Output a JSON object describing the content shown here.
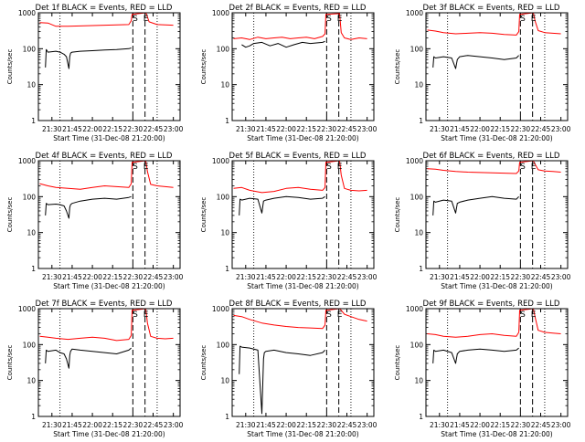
{
  "figure": {
    "x_ticks": [
      "21:30",
      "21:45",
      "22:00",
      "22:15",
      "22:30",
      "22:45",
      "23:00"
    ],
    "x_tick_values": [
      21.5,
      21.75,
      22.0,
      22.25,
      22.5,
      22.75,
      23.0
    ],
    "y_ticks": [
      "1",
      "10",
      "100",
      "1000"
    ],
    "y_tick_values": [
      1,
      10,
      100,
      1000
    ],
    "xlabel": "Start Time (31-Dec-08 21:20:00)",
    "ylabel": "Counts/sec",
    "colors": {
      "black": "#000000",
      "red": "#ff0000",
      "background": "#ffffff"
    }
  },
  "chart_data": [
    {
      "panel": "Det 1f",
      "type": "line",
      "title": "Det 1f BLACK = Events, RED = LLD",
      "xlabel": "Start Time (31-Dec-08 21:20:00)",
      "ylabel": "Counts/sec",
      "x_unit": "hours (clock time)",
      "xlim": [
        21.333,
        23.083
      ],
      "ylim": [
        1,
        1000
      ],
      "y_scale": "log",
      "dotted_lines": [
        21.6,
        22.8
      ],
      "dashed_lines": [
        22.5,
        22.65
      ],
      "markers": [
        {
          "label": "S",
          "x": 22.53
        },
        {
          "label": "E",
          "x": 22.66
        }
      ],
      "series": [
        {
          "name": "Events",
          "color": "black",
          "x": [
            21.42,
            21.43,
            21.45,
            21.55,
            21.6,
            21.65,
            21.68,
            21.71,
            21.72,
            21.73,
            21.75,
            21.85,
            22.0,
            22.15,
            22.3,
            22.45,
            22.48
          ],
          "y": [
            30,
            95,
            80,
            85,
            80,
            70,
            60,
            28,
            60,
            75,
            80,
            85,
            88,
            92,
            95,
            100,
            105
          ]
        },
        {
          "name": "LLD",
          "color": "red",
          "x": [
            21.35,
            21.45,
            21.55,
            21.7,
            21.85,
            22.0,
            22.15,
            22.3,
            22.45,
            22.48,
            22.49,
            22.66,
            22.67,
            22.7,
            22.8,
            22.9,
            23.0
          ],
          "y": [
            530,
            520,
            420,
            420,
            430,
            440,
            450,
            460,
            470,
            600,
            900,
            1000,
            900,
            560,
            470,
            460,
            450
          ]
        }
      ]
    },
    {
      "panel": "Det 2f",
      "type": "line",
      "title": "Det 2f BLACK = Events, RED = LLD",
      "xlabel": "Start Time (31-Dec-08 21:20:00)",
      "ylabel": "Counts/sec",
      "x_unit": "hours (clock time)",
      "xlim": [
        21.333,
        23.083
      ],
      "ylim": [
        1,
        1000
      ],
      "y_scale": "log",
      "dotted_lines": [
        21.6,
        22.8
      ],
      "dashed_lines": [
        22.5,
        22.65
      ],
      "markers": [
        {
          "label": "S",
          "x": 22.53
        },
        {
          "label": "E",
          "x": 22.66
        }
      ],
      "series": [
        {
          "name": "Events",
          "color": "black",
          "x": [
            21.45,
            21.5,
            21.55,
            21.6,
            21.7,
            21.8,
            21.9,
            22.0,
            22.1,
            22.2,
            22.3,
            22.45,
            22.48
          ],
          "y": [
            130,
            110,
            120,
            140,
            150,
            120,
            140,
            110,
            130,
            150,
            140,
            150,
            160
          ]
        },
        {
          "name": "LLD",
          "color": "red",
          "x": [
            21.35,
            21.45,
            21.55,
            21.65,
            21.75,
            21.85,
            21.95,
            22.05,
            22.15,
            22.25,
            22.35,
            22.45,
            22.48,
            22.49,
            22.66,
            22.68,
            22.72,
            22.8,
            22.9,
            23.0
          ],
          "y": [
            190,
            200,
            180,
            210,
            190,
            200,
            210,
            190,
            200,
            210,
            190,
            220,
            260,
            900,
            950,
            280,
            200,
            180,
            200,
            190
          ]
        }
      ]
    },
    {
      "panel": "Det 3f",
      "type": "line",
      "title": "Det 3f BLACK = Events, RED = LLD",
      "xlabel": "Start Time (31-Dec-08 21:20:00)",
      "ylabel": "Counts/sec",
      "x_unit": "hours (clock time)",
      "xlim": [
        21.333,
        23.083
      ],
      "ylim": [
        1,
        1000
      ],
      "y_scale": "log",
      "dotted_lines": [
        21.6,
        22.8
      ],
      "dashed_lines": [
        22.5,
        22.65
      ],
      "markers": [
        {
          "label": "S",
          "x": 22.53
        },
        {
          "label": "E",
          "x": 22.66
        }
      ],
      "series": [
        {
          "name": "Events",
          "color": "black",
          "x": [
            21.42,
            21.43,
            21.45,
            21.55,
            21.65,
            21.7,
            21.72,
            21.75,
            21.85,
            22.0,
            22.15,
            22.3,
            22.45,
            22.48
          ],
          "y": [
            30,
            60,
            55,
            60,
            55,
            28,
            50,
            60,
            65,
            60,
            55,
            50,
            55,
            65
          ]
        },
        {
          "name": "LLD",
          "color": "red",
          "x": [
            21.35,
            21.45,
            21.55,
            21.7,
            21.85,
            22.0,
            22.15,
            22.3,
            22.45,
            22.48,
            22.49,
            22.66,
            22.68,
            22.72,
            22.8,
            22.9,
            23.0
          ],
          "y": [
            330,
            310,
            280,
            260,
            270,
            280,
            270,
            250,
            240,
            300,
            900,
            1000,
            600,
            320,
            280,
            270,
            260
          ]
        }
      ]
    },
    {
      "panel": "Det 4f",
      "type": "line",
      "title": "Det 4f BLACK = Events, RED = LLD",
      "xlabel": "Start Time (31-Dec-08 21:20:00)",
      "ylabel": "Counts/sec",
      "x_unit": "hours (clock time)",
      "xlim": [
        21.333,
        23.083
      ],
      "ylim": [
        1,
        1000
      ],
      "y_scale": "log",
      "dotted_lines": [
        21.6,
        22.8
      ],
      "dashed_lines": [
        22.5,
        22.65
      ],
      "markers": [
        {
          "label": "S",
          "x": 22.53
        },
        {
          "label": "E",
          "x": 22.66
        }
      ],
      "series": [
        {
          "name": "Events",
          "color": "black",
          "x": [
            21.42,
            21.43,
            21.45,
            21.55,
            21.6,
            21.65,
            21.68,
            21.71,
            21.72,
            21.73,
            21.75,
            21.85,
            22.0,
            22.15,
            22.3,
            22.45,
            22.48
          ],
          "y": [
            30,
            65,
            60,
            62,
            60,
            55,
            40,
            25,
            50,
            60,
            65,
            75,
            85,
            90,
            85,
            95,
            100
          ]
        },
        {
          "name": "LLD",
          "color": "red",
          "x": [
            21.35,
            21.45,
            21.55,
            21.7,
            21.85,
            22.0,
            22.15,
            22.3,
            22.45,
            22.48,
            22.49,
            22.66,
            22.68,
            22.72,
            22.8,
            22.9,
            23.0
          ],
          "y": [
            230,
            200,
            180,
            170,
            160,
            180,
            200,
            190,
            180,
            230,
            900,
            1000,
            500,
            220,
            200,
            190,
            180
          ]
        }
      ]
    },
    {
      "panel": "Det 5f",
      "type": "line",
      "title": "Det 5f BLACK = Events, RED = LLD",
      "xlabel": "Start Time (31-Dec-08 21:20:00)",
      "ylabel": "Counts/sec",
      "x_unit": "hours (clock time)",
      "xlim": [
        21.333,
        23.083
      ],
      "ylim": [
        1,
        1000
      ],
      "y_scale": "log",
      "dotted_lines": [
        21.6,
        22.8
      ],
      "dashed_lines": [
        22.5,
        22.65
      ],
      "markers": [
        {
          "label": "S",
          "x": 22.53
        },
        {
          "label": "E",
          "x": 22.66
        }
      ],
      "series": [
        {
          "name": "Events",
          "color": "black",
          "x": [
            21.42,
            21.43,
            21.45,
            21.55,
            21.65,
            21.7,
            21.72,
            21.75,
            21.85,
            22.0,
            22.15,
            22.3,
            22.45,
            22.48
          ],
          "y": [
            30,
            85,
            80,
            90,
            85,
            35,
            75,
            80,
            90,
            100,
            95,
            85,
            90,
            100
          ]
        },
        {
          "name": "LLD",
          "color": "red",
          "x": [
            21.35,
            21.45,
            21.55,
            21.7,
            21.85,
            22.0,
            22.15,
            22.3,
            22.45,
            22.48,
            22.49,
            22.66,
            22.68,
            22.72,
            22.8,
            22.9,
            23.0
          ],
          "y": [
            170,
            180,
            150,
            130,
            140,
            170,
            180,
            160,
            150,
            180,
            900,
            1000,
            400,
            170,
            150,
            145,
            150
          ]
        }
      ]
    },
    {
      "panel": "Det 6f",
      "type": "line",
      "title": "Det 6f BLACK = Events, RED = LLD",
      "xlabel": "Start Time (31-Dec-08 21:20:00)",
      "ylabel": "Counts/sec",
      "x_unit": "hours (clock time)",
      "xlim": [
        21.333,
        23.083
      ],
      "ylim": [
        1,
        1000
      ],
      "y_scale": "log",
      "dotted_lines": [
        21.6,
        22.8
      ],
      "dashed_lines": [
        22.5,
        22.65
      ],
      "markers": [
        {
          "label": "S",
          "x": 22.53
        },
        {
          "label": "E",
          "x": 22.66
        }
      ],
      "series": [
        {
          "name": "Events",
          "color": "black",
          "x": [
            21.42,
            21.43,
            21.45,
            21.55,
            21.65,
            21.7,
            21.72,
            21.75,
            21.85,
            22.0,
            22.15,
            22.3,
            22.45,
            22.48
          ],
          "y": [
            30,
            75,
            70,
            80,
            75,
            35,
            65,
            70,
            80,
            90,
            100,
            90,
            85,
            100
          ]
        },
        {
          "name": "LLD",
          "color": "red",
          "x": [
            21.35,
            21.45,
            21.55,
            21.7,
            21.85,
            22.0,
            22.15,
            22.3,
            22.45,
            22.48,
            22.49,
            22.66,
            22.68,
            22.72,
            22.8,
            22.9,
            23.0
          ],
          "y": [
            600,
            580,
            540,
            500,
            480,
            470,
            460,
            450,
            440,
            520,
            900,
            1000,
            800,
            560,
            520,
            500,
            480
          ]
        }
      ]
    },
    {
      "panel": "Det 7f",
      "type": "line",
      "title": "Det 7f BLACK = Events, RED = LLD",
      "xlabel": "Start Time (31-Dec-08 21:20:00)",
      "ylabel": "Counts/sec",
      "x_unit": "hours (clock time)",
      "xlim": [
        21.333,
        23.083
      ],
      "ylim": [
        1,
        1000
      ],
      "y_scale": "log",
      "dotted_lines": [
        21.6,
        22.8
      ],
      "dashed_lines": [
        22.5,
        22.65
      ],
      "markers": [
        {
          "label": "S",
          "x": 22.53
        },
        {
          "label": "E",
          "x": 22.66
        }
      ],
      "series": [
        {
          "name": "Events",
          "color": "black",
          "x": [
            21.42,
            21.43,
            21.45,
            21.55,
            21.6,
            21.65,
            21.68,
            21.71,
            21.72,
            21.73,
            21.75,
            21.85,
            22.0,
            22.15,
            22.3,
            22.45,
            22.48
          ],
          "y": [
            30,
            70,
            65,
            70,
            60,
            55,
            40,
            22,
            50,
            65,
            75,
            70,
            65,
            60,
            55,
            70,
            80
          ]
        },
        {
          "name": "LLD",
          "color": "red",
          "x": [
            21.35,
            21.45,
            21.55,
            21.7,
            21.85,
            22.0,
            22.15,
            22.3,
            22.45,
            22.48,
            22.49,
            22.66,
            22.68,
            22.72,
            22.8,
            22.9,
            23.0
          ],
          "y": [
            170,
            160,
            150,
            140,
            150,
            160,
            150,
            130,
            140,
            180,
            900,
            1000,
            400,
            170,
            150,
            145,
            150
          ]
        }
      ]
    },
    {
      "panel": "Det 8f",
      "type": "line",
      "title": "Det 8f BLACK = Events, RED = LLD",
      "xlabel": "Start Time (31-Dec-08 21:20:00)",
      "ylabel": "Counts/sec",
      "x_unit": "hours (clock time)",
      "xlim": [
        21.333,
        23.083
      ],
      "ylim": [
        1,
        1000
      ],
      "y_scale": "log",
      "dotted_lines": [
        21.6,
        22.8
      ],
      "dashed_lines": [
        22.5,
        22.65
      ],
      "markers": [
        {
          "label": "S",
          "x": 22.53
        },
        {
          "label": "E",
          "x": 22.66
        }
      ],
      "series": [
        {
          "name": "Events",
          "color": "black",
          "x": [
            21.42,
            21.43,
            21.45,
            21.55,
            21.65,
            21.7,
            21.72,
            21.73,
            21.75,
            21.85,
            22.0,
            22.15,
            22.3,
            22.45,
            22.48
          ],
          "y": [
            15,
            90,
            85,
            80,
            70,
            1.2,
            40,
            60,
            65,
            70,
            60,
            55,
            50,
            60,
            70
          ]
        },
        {
          "name": "LLD",
          "color": "red",
          "x": [
            21.35,
            21.45,
            21.55,
            21.7,
            21.85,
            22.0,
            22.15,
            22.3,
            22.45,
            22.48,
            22.49,
            22.66,
            22.68,
            22.72,
            22.8,
            22.9,
            23.0
          ],
          "y": [
            650,
            600,
            500,
            400,
            350,
            320,
            300,
            290,
            280,
            350,
            900,
            1000,
            900,
            700,
            600,
            500,
            450
          ]
        }
      ]
    },
    {
      "panel": "Det 9f",
      "type": "line",
      "title": "Det 9f BLACK = Events, RED = LLD",
      "xlabel": "Start Time (31-Dec-08 21:20:00)",
      "ylabel": "Counts/sec",
      "x_unit": "hours (clock time)",
      "xlim": [
        21.333,
        23.083
      ],
      "ylim": [
        1,
        1000
      ],
      "y_scale": "log",
      "dotted_lines": [
        21.6,
        22.8
      ],
      "dashed_lines": [
        22.5,
        22.65
      ],
      "markers": [
        {
          "label": "S",
          "x": 22.53
        },
        {
          "label": "E",
          "x": 22.66
        }
      ],
      "series": [
        {
          "name": "Events",
          "color": "black",
          "x": [
            21.42,
            21.43,
            21.45,
            21.55,
            21.65,
            21.7,
            21.72,
            21.75,
            21.85,
            22.0,
            22.15,
            22.3,
            22.45,
            22.48
          ],
          "y": [
            30,
            70,
            65,
            70,
            60,
            30,
            55,
            65,
            70,
            75,
            70,
            65,
            70,
            80
          ]
        },
        {
          "name": "LLD",
          "color": "red",
          "x": [
            21.35,
            21.45,
            21.55,
            21.7,
            21.85,
            22.0,
            22.15,
            22.3,
            22.45,
            22.48,
            22.49,
            22.66,
            22.68,
            22.72,
            22.8,
            22.9,
            23.0
          ],
          "y": [
            200,
            190,
            170,
            160,
            170,
            190,
            200,
            180,
            170,
            220,
            900,
            1000,
            600,
            250,
            220,
            210,
            200
          ]
        }
      ]
    }
  ]
}
